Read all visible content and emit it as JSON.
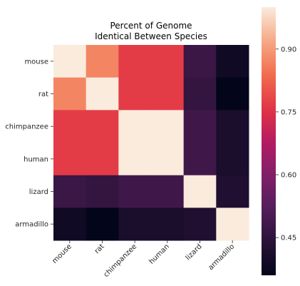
{
  "chart_data": {
    "type": "heatmap",
    "title_lines": [
      "Percent of Genome",
      "Identical Between Species"
    ],
    "row_labels": [
      "mouse",
      "rat",
      "chimpanzee",
      "human",
      "lizard",
      "armadillo"
    ],
    "col_labels": [
      "mouse",
      "rat",
      "chimpanzee",
      "human",
      "lizard",
      "armadillo"
    ],
    "values": [
      [
        1.0,
        0.87,
        0.77,
        0.77,
        0.47,
        0.39
      ],
      [
        0.87,
        1.0,
        0.77,
        0.77,
        0.46,
        0.36
      ],
      [
        0.77,
        0.77,
        1.0,
        1.0,
        0.48,
        0.41
      ],
      [
        0.77,
        0.77,
        1.0,
        1.0,
        0.48,
        0.41
      ],
      [
        0.47,
        0.46,
        0.48,
        0.48,
        1.0,
        0.42
      ],
      [
        0.39,
        0.36,
        0.41,
        0.41,
        0.42,
        1.0
      ]
    ],
    "vmin": 0.36,
    "vmax": 1.0,
    "colormap": "rocket",
    "colorbar_ticks": [
      0.45,
      0.6,
      0.75,
      0.9
    ],
    "colorbar_tick_labels": [
      "0.45",
      "0.60",
      "0.75",
      "0.90"
    ],
    "grid": false
  }
}
